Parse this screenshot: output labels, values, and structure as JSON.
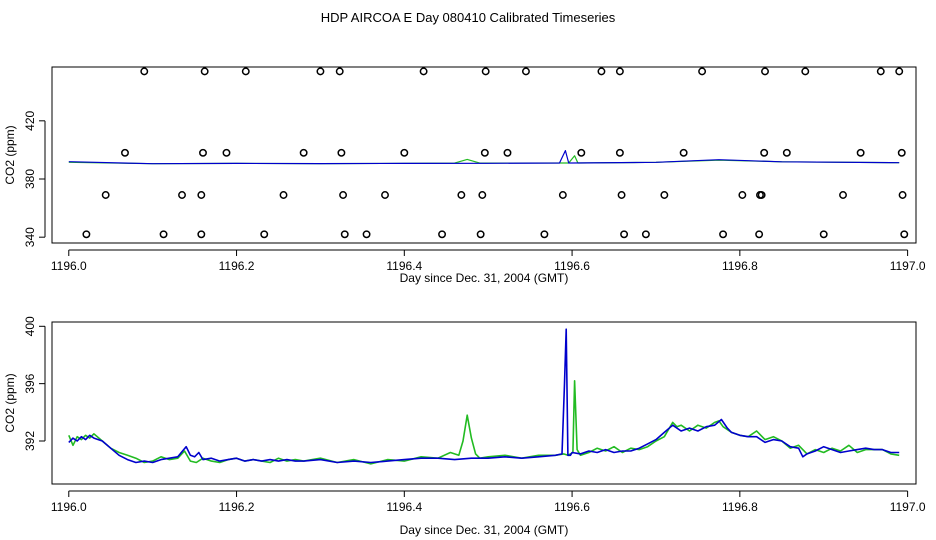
{
  "figure": {
    "title": "HDP AIRCOA E  Day 080410  Calibrated Timeseries"
  },
  "colors": {
    "series_green": "#22bb22",
    "series_blue": "#0000cc",
    "points": "#000000",
    "frame": "#000000"
  },
  "chart_data": [
    {
      "type": "scatter",
      "panel": "top",
      "xlabel": "Day since Dec. 31, 2004 (GMT)",
      "ylabel": "CO2 (ppm)",
      "xlim": [
        1195.98,
        1197.01
      ],
      "ylim": [
        336,
        457
      ],
      "xticks": [
        "1196.0",
        "1196.2",
        "1196.4",
        "1196.6",
        "1196.8",
        "1197.0"
      ],
      "yticks": [
        "340",
        "380",
        "420"
      ],
      "point_series": [
        {
          "y": 454,
          "x": [
            1196.09,
            1196.162,
            1196.211,
            1196.3,
            1196.323,
            1196.423,
            1196.497,
            1196.545,
            1196.635,
            1196.657,
            1196.755,
            1196.83,
            1196.878,
            1196.968,
            1196.99
          ]
        },
        {
          "y": 398,
          "x": [
            1196.067,
            1196.16,
            1196.188,
            1196.28,
            1196.325,
            1196.4,
            1196.496,
            1196.523,
            1196.611,
            1196.657,
            1196.733,
            1196.829,
            1196.856,
            1196.944,
            1196.993
          ]
        },
        {
          "y": 369,
          "x": [
            1196.044,
            1196.135,
            1196.158,
            1196.256,
            1196.327,
            1196.377,
            1196.468,
            1196.493,
            1196.589,
            1196.659,
            1196.71,
            1196.803,
            1196.824,
            1196.826,
            1196.923,
            1196.994
          ]
        },
        {
          "y": 342,
          "x": [
            1196.021,
            1196.113,
            1196.158,
            1196.233,
            1196.329,
            1196.355,
            1196.445,
            1196.491,
            1196.567,
            1196.662,
            1196.688,
            1196.78,
            1196.823,
            1196.9,
            1196.996
          ]
        }
      ],
      "series": [
        {
          "color": "series_green",
          "x": [
            1196.0,
            1196.1,
            1196.2,
            1196.3,
            1196.4,
            1196.46,
            1196.475,
            1196.49,
            1196.59,
            1196.593,
            1196.596,
            1196.603,
            1196.607,
            1196.61,
            1196.7,
            1196.775,
            1196.85,
            1196.99
          ],
          "y": [
            391.5,
            390.5,
            390.7,
            390.6,
            390.7,
            390.9,
            393.5,
            390.9,
            391.0,
            391.0,
            391.0,
            396.0,
            391.0,
            391.0,
            391.5,
            393.0,
            391.8,
            391.2
          ]
        },
        {
          "color": "series_blue",
          "x": [
            1196.0,
            1196.1,
            1196.2,
            1196.3,
            1196.4,
            1196.5,
            1196.585,
            1196.592,
            1196.596,
            1196.6,
            1196.7,
            1196.775,
            1196.85,
            1196.99
          ],
          "y": [
            391.9,
            390.5,
            390.7,
            390.6,
            390.7,
            390.8,
            391.0,
            399.5,
            391.0,
            391.0,
            391.5,
            393.3,
            391.8,
            391.2
          ]
        }
      ]
    },
    {
      "type": "line",
      "panel": "bottom",
      "xlabel": "Day since Dec. 31, 2004 (GMT)",
      "ylabel": "CO2 (ppm)",
      "xlim": [
        1195.98,
        1197.01
      ],
      "ylim": [
        389.0,
        400.3
      ],
      "xticks": [
        "1196.0",
        "1196.2",
        "1196.4",
        "1196.6",
        "1196.8",
        "1197.0"
      ],
      "yticks": [
        "392",
        "396",
        "400"
      ],
      "series": [
        {
          "color": "series_green",
          "x": [
            1196.0,
            1196.005,
            1196.01,
            1196.015,
            1196.02,
            1196.025,
            1196.03,
            1196.04,
            1196.05,
            1196.06,
            1196.07,
            1196.08,
            1196.09,
            1196.1,
            1196.11,
            1196.12,
            1196.13,
            1196.138,
            1196.145,
            1196.152,
            1196.16,
            1196.17,
            1196.18,
            1196.19,
            1196.2,
            1196.21,
            1196.22,
            1196.23,
            1196.24,
            1196.25,
            1196.26,
            1196.27,
            1196.28,
            1196.3,
            1196.32,
            1196.34,
            1196.36,
            1196.38,
            1196.4,
            1196.42,
            1196.44,
            1196.455,
            1196.465,
            1196.47,
            1196.475,
            1196.48,
            1196.485,
            1196.49,
            1196.5,
            1196.52,
            1196.54,
            1196.56,
            1196.58,
            1196.59,
            1196.595,
            1196.598,
            1196.601,
            1196.603,
            1196.606,
            1196.61,
            1196.62,
            1196.63,
            1196.64,
            1196.65,
            1196.66,
            1196.67,
            1196.68,
            1196.69,
            1196.7,
            1196.71,
            1196.72,
            1196.725,
            1196.73,
            1196.74,
            1196.75,
            1196.76,
            1196.77,
            1196.775,
            1196.78,
            1196.79,
            1196.8,
            1196.81,
            1196.82,
            1196.83,
            1196.84,
            1196.85,
            1196.86,
            1196.87,
            1196.88,
            1196.89,
            1196.9,
            1196.91,
            1196.92,
            1196.93,
            1196.94,
            1196.95,
            1196.96,
            1196.97,
            1196.98,
            1196.99
          ],
          "y": [
            392.4,
            391.7,
            392.3,
            392.1,
            392.4,
            392.2,
            392.5,
            392.0,
            391.5,
            391.2,
            391.0,
            390.8,
            390.5,
            390.6,
            390.9,
            390.7,
            390.8,
            391.3,
            390.6,
            390.5,
            390.8,
            390.6,
            390.5,
            390.7,
            390.8,
            390.6,
            390.7,
            390.6,
            390.5,
            390.8,
            390.6,
            390.7,
            390.6,
            390.8,
            390.5,
            390.7,
            390.4,
            390.7,
            390.6,
            390.9,
            390.8,
            391.2,
            391.0,
            392.0,
            393.8,
            392.2,
            391.1,
            390.8,
            390.9,
            391.0,
            390.8,
            391.0,
            391.0,
            391.1,
            391.0,
            391.1,
            391.2,
            396.2,
            391.4,
            391.0,
            391.2,
            391.5,
            391.3,
            391.6,
            391.2,
            391.5,
            391.4,
            391.6,
            392.0,
            392.3,
            393.3,
            393.0,
            393.1,
            392.7,
            393.1,
            392.9,
            393.3,
            393.4,
            393.0,
            392.6,
            392.4,
            392.3,
            392.7,
            392.1,
            392.3,
            392.0,
            391.5,
            391.7,
            391.1,
            391.4,
            391.2,
            391.5,
            391.3,
            391.7,
            391.2,
            391.4,
            391.4,
            391.4,
            391.1,
            391.0
          ]
        },
        {
          "color": "series_blue",
          "x": [
            1196.0,
            1196.005,
            1196.01,
            1196.015,
            1196.02,
            1196.025,
            1196.03,
            1196.04,
            1196.05,
            1196.06,
            1196.07,
            1196.08,
            1196.09,
            1196.1,
            1196.11,
            1196.12,
            1196.13,
            1196.137,
            1196.14,
            1196.145,
            1196.15,
            1196.155,
            1196.16,
            1196.17,
            1196.18,
            1196.19,
            1196.2,
            1196.21,
            1196.22,
            1196.23,
            1196.24,
            1196.25,
            1196.26,
            1196.27,
            1196.28,
            1196.3,
            1196.32,
            1196.34,
            1196.36,
            1196.38,
            1196.4,
            1196.42,
            1196.44,
            1196.46,
            1196.48,
            1196.5,
            1196.52,
            1196.54,
            1196.56,
            1196.58,
            1196.588,
            1196.591,
            1196.593,
            1196.595,
            1196.598,
            1196.6,
            1196.61,
            1196.62,
            1196.63,
            1196.64,
            1196.65,
            1196.66,
            1196.67,
            1196.68,
            1196.69,
            1196.7,
            1196.71,
            1196.72,
            1196.73,
            1196.74,
            1196.75,
            1196.76,
            1196.77,
            1196.778,
            1196.785,
            1196.79,
            1196.8,
            1196.81,
            1196.82,
            1196.83,
            1196.84,
            1196.85,
            1196.86,
            1196.87,
            1196.875,
            1196.88,
            1196.89,
            1196.9,
            1196.91,
            1196.92,
            1196.93,
            1196.94,
            1196.95,
            1196.96,
            1196.97,
            1196.98,
            1196.99
          ],
          "y": [
            391.9,
            392.2,
            392.0,
            392.3,
            392.1,
            392.4,
            392.2,
            392.0,
            391.5,
            391.0,
            390.7,
            390.5,
            390.6,
            390.5,
            390.7,
            390.8,
            390.9,
            391.4,
            391.6,
            391.0,
            390.9,
            391.2,
            390.7,
            390.8,
            390.6,
            390.7,
            390.8,
            390.6,
            390.7,
            390.6,
            390.7,
            390.6,
            390.7,
            390.6,
            390.6,
            390.7,
            390.5,
            390.6,
            390.5,
            390.6,
            390.7,
            390.8,
            390.8,
            390.7,
            390.8,
            390.8,
            390.9,
            390.8,
            390.9,
            391.0,
            391.1,
            396.0,
            399.8,
            391.0,
            391.0,
            391.2,
            391.1,
            391.3,
            391.2,
            391.4,
            391.2,
            391.3,
            391.3,
            391.5,
            391.8,
            392.1,
            392.6,
            393.1,
            392.7,
            392.9,
            392.7,
            393.0,
            393.1,
            393.5,
            392.9,
            392.6,
            392.4,
            392.3,
            392.3,
            391.9,
            392.1,
            392.0,
            391.6,
            391.5,
            390.9,
            391.1,
            391.3,
            391.6,
            391.4,
            391.2,
            391.3,
            391.4,
            391.5,
            391.4,
            391.4,
            391.2,
            391.2
          ]
        }
      ]
    }
  ]
}
